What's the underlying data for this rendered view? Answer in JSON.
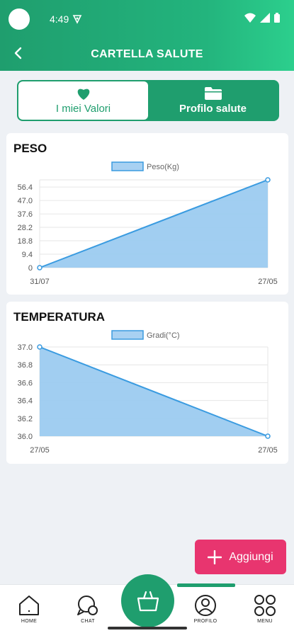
{
  "status_bar": {
    "time": "4:49"
  },
  "header": {
    "title": "CARTELLA SALUTE"
  },
  "tabs": [
    {
      "label": "I miei Valori",
      "icon": "heart-icon",
      "active": true
    },
    {
      "label": "Profilo salute",
      "icon": "folder-icon",
      "active": false
    }
  ],
  "chart_data": [
    {
      "type": "area",
      "title": "PESO",
      "legend": "Peso(Kg)",
      "x": [
        "31/07",
        "27/05"
      ],
      "y_ticks": [
        "56.4",
        "47.0",
        "37.6",
        "28.2",
        "18.8",
        "9.4",
        "0"
      ],
      "ylim": [
        0,
        61.4
      ],
      "series": [
        {
          "name": "Peso(Kg)",
          "values": [
            0,
            61.4
          ]
        }
      ],
      "grid": true,
      "color": "#3a9be0"
    },
    {
      "type": "area",
      "title": "TEMPERATURA",
      "legend": "Gradi(°C)",
      "x": [
        "27/05",
        "27/05"
      ],
      "y_ticks": [
        "37.0",
        "36.8",
        "36.6",
        "36.4",
        "36.2",
        "36.0"
      ],
      "ylim": [
        36.0,
        37.0
      ],
      "series": [
        {
          "name": "Gradi(°C)",
          "values": [
            37.0,
            36.0
          ]
        }
      ],
      "grid": true,
      "color": "#3a9be0"
    }
  ],
  "fab": {
    "label": "Aggiungi"
  },
  "bottom_nav": [
    {
      "label": "HOME",
      "icon": "home-icon"
    },
    {
      "label": "CHAT",
      "icon": "chat-icon"
    },
    {
      "label": "",
      "icon": "basket-icon"
    },
    {
      "label": "PROFILO",
      "icon": "profile-icon"
    },
    {
      "label": "MENU",
      "icon": "menu-grid-icon"
    }
  ]
}
